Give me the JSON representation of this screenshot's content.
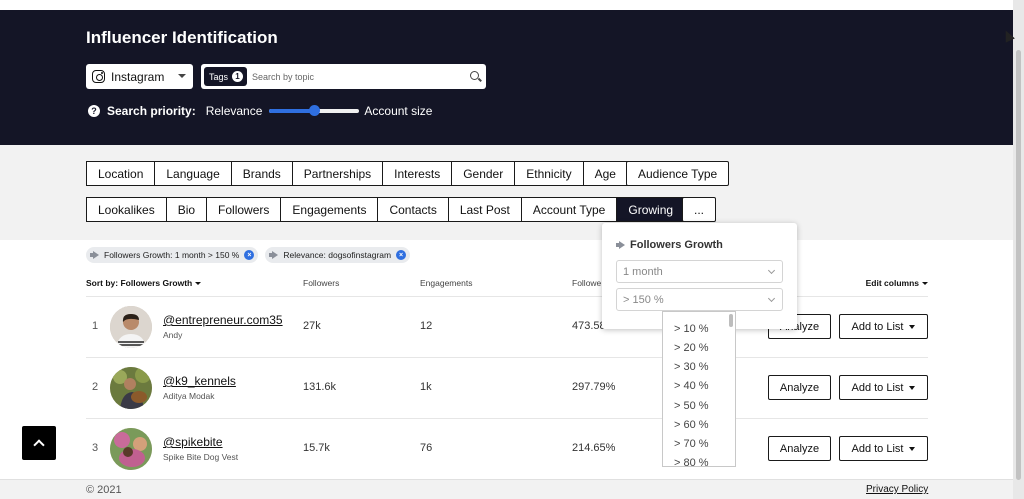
{
  "hero": {
    "title": "Influencer Identification",
    "platform": "Instagram",
    "tags_label": "Tags",
    "tags_count": "1",
    "search_placeholder": "Search by topic",
    "priority_label": "Search priority:",
    "priority_left": "Relevance",
    "priority_right": "Account size",
    "priority_value_pct": 50
  },
  "filters": {
    "row1": [
      "Location",
      "Language",
      "Brands",
      "Partnerships",
      "Interests",
      "Gender",
      "Ethnicity",
      "Age"
    ],
    "audience_type": "Audience Type",
    "row2": [
      "Lookalikes",
      "Bio",
      "Followers",
      "Engagements",
      "Contacts",
      "Last Post",
      "Account Type",
      "Growing"
    ],
    "active": "Growing",
    "more": "..."
  },
  "chips": [
    "Followers Growth: 1 month > 150 %",
    "Relevance: dogsofinstagram"
  ],
  "table": {
    "sort_label": "Sort by: Followers Growth",
    "col_followers": "Followers",
    "col_engagements": "Engagements",
    "col_growth": "Followe",
    "edit_columns": "Edit columns",
    "analyze_label": "Analyze",
    "add_to_list_label": "Add to List",
    "rows": [
      {
        "rank": "1",
        "handle": "@entrepreneur.com35",
        "name": "Andy",
        "followers": "27k",
        "engagements": "12",
        "growth": "473.58%",
        "analyze": "Analyze"
      },
      {
        "rank": "2",
        "handle": "@k9_kennels",
        "name": "Aditya Modak",
        "followers": "131.6k",
        "engagements": "1k",
        "growth": "297.79%",
        "analyze": "Analyze"
      },
      {
        "rank": "3",
        "handle": "@spikebite",
        "name": "Spike Bite Dog Vest",
        "followers": "15.7k",
        "engagements": "76",
        "growth": "214.65%",
        "analyze": "Analyze"
      }
    ]
  },
  "popover": {
    "title": "Followers Growth",
    "period": "1 month",
    "threshold": "> 150 %",
    "options": [
      "> 10 %",
      "> 20 %",
      "> 30 %",
      "> 40 %",
      "> 50 %",
      "> 60 %",
      "> 70 %",
      "> 80 %"
    ]
  },
  "footer": {
    "copyright": "© 2021",
    "privacy": "Privacy Policy"
  },
  "colors": {
    "hero_bg": "#141526",
    "accent": "#2f6fe0"
  }
}
